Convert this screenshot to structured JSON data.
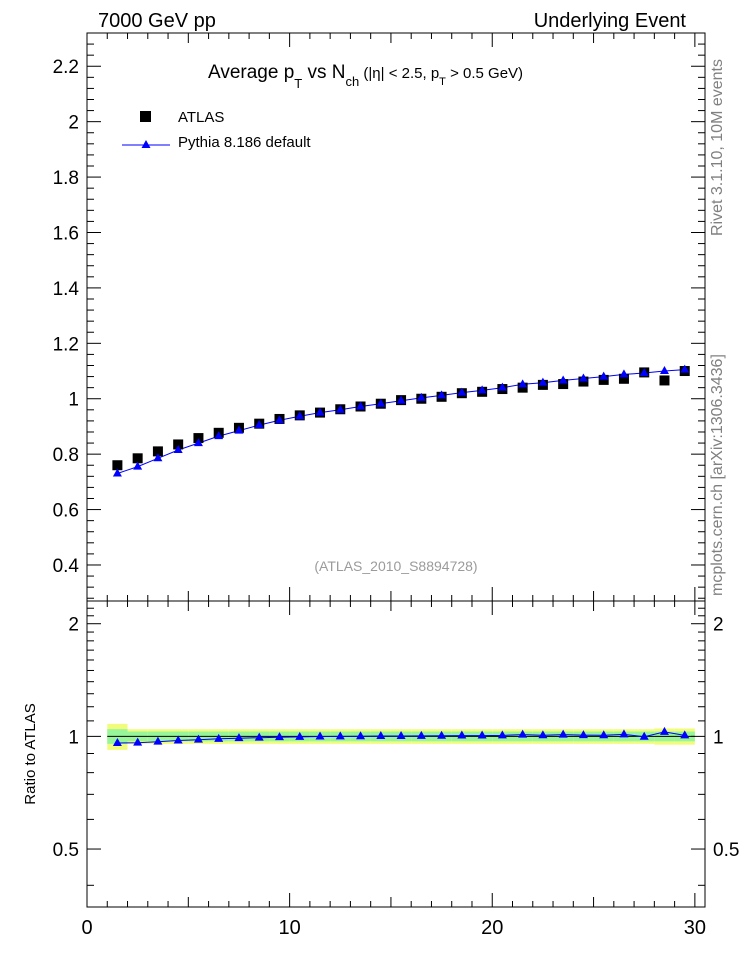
{
  "header": {
    "left": "7000 GeV pp",
    "right": "Underlying Event"
  },
  "side_labels": {
    "top": "Rivet 3.1.10, 10M events",
    "bottom": "mcplots.cern.ch [arXiv:1306.3436]"
  },
  "title": {
    "p1": "Average p",
    "s1": "T",
    "p2": " vs N",
    "s2": "ch",
    "p3": " (|η| < 2.5, p",
    "s3": "T",
    "p4": " > 0.5 GeV)"
  },
  "watermark": "(ATLAS_2010_S8894728)",
  "legend": {
    "data_label": "ATLAS",
    "mc_label": "Pythia 8.186 default",
    "placement": "top-left"
  },
  "colors": {
    "data": "#000000",
    "mc": "#0000ff",
    "band_inner": "#97f59a",
    "band_outer": "#f2fc7c"
  },
  "chart_data": [
    {
      "type": "scatter",
      "name": "main",
      "xlim": [
        0,
        30.5
      ],
      "ylim": [
        0.27,
        2.32
      ],
      "yticks": [
        0.4,
        0.6,
        0.8,
        1,
        1.2,
        1.4,
        1.6,
        1.8,
        2,
        2.2
      ],
      "ytick_labels": [
        "0.4",
        "0.6",
        "0.8",
        "1",
        "1.2",
        "1.4",
        "1.6",
        "1.8",
        "2",
        "2.2"
      ],
      "series": [
        {
          "name": "ATLAS",
          "x": [
            1.5,
            2.5,
            3.5,
            4.5,
            5.5,
            6.5,
            7.5,
            8.5,
            9.5,
            10.5,
            11.5,
            12.5,
            13.5,
            14.5,
            15.5,
            16.5,
            17.5,
            18.5,
            19.5,
            20.5,
            21.5,
            22.5,
            23.5,
            24.5,
            25.5,
            26.5,
            27.5,
            28.5,
            29.5
          ],
          "y": [
            0.76,
            0.785,
            0.81,
            0.835,
            0.858,
            0.877,
            0.895,
            0.91,
            0.927,
            0.94,
            0.95,
            0.962,
            0.972,
            0.982,
            0.995,
            1.0,
            1.007,
            1.02,
            1.025,
            1.035,
            1.04,
            1.05,
            1.053,
            1.062,
            1.068,
            1.072,
            1.095,
            1.066,
            1.1
          ]
        },
        {
          "name": "Pythia 8.186 default",
          "x": [
            1.5,
            2.5,
            3.5,
            4.5,
            5.5,
            6.5,
            7.5,
            8.5,
            9.5,
            10.5,
            11.5,
            12.5,
            13.5,
            14.5,
            15.5,
            16.5,
            17.5,
            18.5,
            19.5,
            20.5,
            21.5,
            22.5,
            23.5,
            24.5,
            25.5,
            26.5,
            27.5,
            28.5,
            29.5
          ],
          "y": [
            0.73,
            0.755,
            0.785,
            0.815,
            0.84,
            0.865,
            0.885,
            0.905,
            0.922,
            0.937,
            0.95,
            0.96,
            0.972,
            0.982,
            0.993,
            1.003,
            1.012,
            1.022,
            1.03,
            1.04,
            1.052,
            1.058,
            1.066,
            1.073,
            1.08,
            1.088,
            1.093,
            1.1,
            1.105
          ]
        }
      ]
    },
    {
      "type": "line",
      "name": "ratio",
      "ylabel": "Ratio to ATLAS",
      "xlim": [
        0,
        30.5
      ],
      "ylim": [
        0.35,
        2.3
      ],
      "yticks": [
        0.5,
        1,
        2
      ],
      "ytick_labels": [
        "0.5",
        "1",
        "2"
      ],
      "xticks": [
        0,
        10,
        20,
        30
      ],
      "xtick_labels": [
        "0",
        "10",
        "20",
        "30"
      ],
      "band": {
        "x_edges": [
          1,
          2,
          3,
          4,
          5,
          6,
          7,
          8,
          9,
          10,
          11,
          12,
          13,
          14,
          15,
          16,
          17,
          18,
          19,
          20,
          21,
          22,
          23,
          24,
          25,
          26,
          27,
          28,
          29,
          30
        ],
        "inner_halfwidth": [
          0.045,
          0.03,
          0.03,
          0.03,
          0.03,
          0.03,
          0.03,
          0.03,
          0.03,
          0.03,
          0.03,
          0.03,
          0.03,
          0.03,
          0.03,
          0.03,
          0.03,
          0.03,
          0.03,
          0.03,
          0.03,
          0.03,
          0.03,
          0.03,
          0.03,
          0.03,
          0.03,
          0.03,
          0.03
        ],
        "outer_halfwidth": [
          0.08,
          0.045,
          0.045,
          0.045,
          0.045,
          0.045,
          0.045,
          0.045,
          0.045,
          0.045,
          0.045,
          0.045,
          0.045,
          0.045,
          0.045,
          0.045,
          0.045,
          0.045,
          0.045,
          0.045,
          0.045,
          0.045,
          0.045,
          0.045,
          0.045,
          0.045,
          0.045,
          0.05,
          0.05
        ]
      },
      "series": [
        {
          "name": "Pythia 8.186 default",
          "x": [
            1.5,
            2.5,
            3.5,
            4.5,
            5.5,
            6.5,
            7.5,
            8.5,
            9.5,
            10.5,
            11.5,
            12.5,
            13.5,
            14.5,
            15.5,
            16.5,
            17.5,
            18.5,
            19.5,
            20.5,
            21.5,
            22.5,
            23.5,
            24.5,
            25.5,
            26.5,
            27.5,
            28.5,
            29.5
          ],
          "y": [
            0.96,
            0.962,
            0.968,
            0.975,
            0.98,
            0.985,
            0.989,
            0.992,
            0.995,
            0.997,
            0.999,
            1.0,
            1.001,
            1.002,
            1.002,
            1.003,
            1.004,
            1.005,
            1.005,
            1.006,
            1.011,
            1.007,
            1.011,
            1.008,
            1.007,
            1.012,
            0.998,
            1.028,
            1.006
          ]
        }
      ]
    }
  ]
}
